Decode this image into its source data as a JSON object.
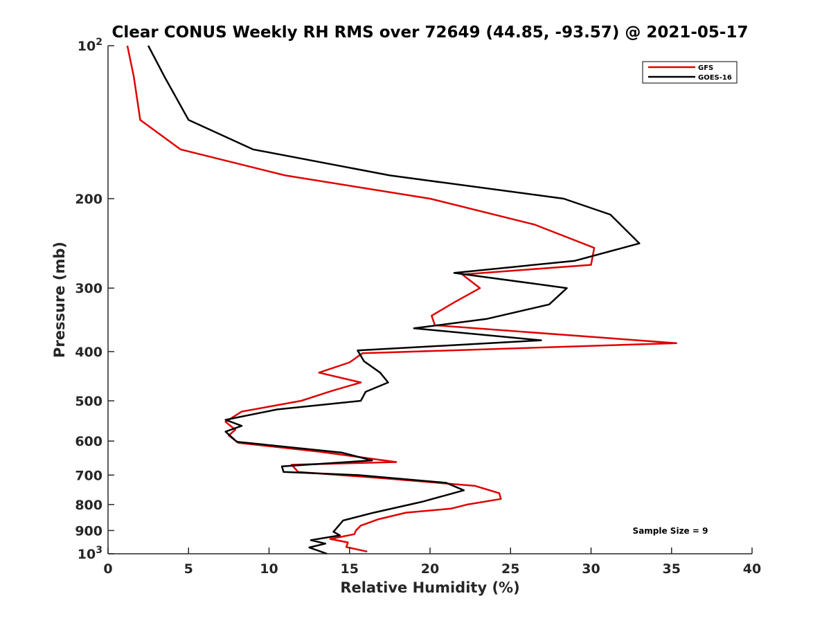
{
  "chart_data": {
    "type": "line",
    "title": "Clear CONUS Weekly RH RMS over 72649 (44.85, -93.57) @ 2021-05-17",
    "xlabel": "Relative Humidity (%)",
    "ylabel": "Pressure (mb)",
    "xlim": [
      0,
      40
    ],
    "ylim": [
      100,
      1000
    ],
    "y_scale": "log",
    "y_reversed": true,
    "grid": false,
    "legend_position": "top-right",
    "x_ticks": [
      0,
      5,
      10,
      15,
      20,
      25,
      30,
      35,
      40
    ],
    "x_tick_labels": [
      "0",
      "5",
      "10",
      "15",
      "20",
      "25",
      "30",
      "35",
      "40"
    ],
    "y_ticks": [
      100,
      200,
      300,
      400,
      500,
      600,
      700,
      800,
      900,
      1000
    ],
    "y_tick_labels": [
      {
        "base": "10",
        "exp": "2"
      },
      {
        "base": "200",
        "exp": ""
      },
      {
        "base": "300",
        "exp": ""
      },
      {
        "base": "400",
        "exp": ""
      },
      {
        "base": "500",
        "exp": ""
      },
      {
        "base": "600",
        "exp": ""
      },
      {
        "base": "700",
        "exp": ""
      },
      {
        "base": "800",
        "exp": ""
      },
      {
        "base": "900",
        "exp": ""
      },
      {
        "base": "10",
        "exp": "3"
      }
    ],
    "annotation": "Sample Size = 9",
    "series": [
      {
        "name": "GFS",
        "color": "#e00000",
        "x": [
          1.2,
          1.6,
          2.0,
          4.5,
          11.0,
          20.0,
          26.5,
          30.2,
          30.0,
          22.0,
          23.1,
          21.5,
          20.1,
          20.3,
          35.3,
          15.8,
          15.0,
          13.1,
          15.7,
          13.9,
          12.0,
          8.3,
          7.3,
          7.9,
          7.5,
          8.1,
          13.2,
          17.9,
          11.4,
          11.8,
          17.0,
          22.8,
          24.3,
          24.4,
          22.3,
          21.3,
          18.5,
          16.8,
          15.7,
          15.4,
          15.3,
          13.8,
          14.9,
          14.8,
          16.1
        ],
        "y": [
          100,
          115,
          140,
          160,
          180,
          200,
          225,
          250,
          270,
          282,
          300,
          320,
          340,
          355,
          385,
          403,
          420,
          440,
          460,
          478,
          500,
          525,
          550,
          570,
          585,
          605,
          630,
          660,
          668,
          690,
          710,
          735,
          760,
          780,
          800,
          815,
          830,
          855,
          880,
          900,
          915,
          935,
          950,
          970,
          990
        ]
      },
      {
        "name": "GOES-16",
        "color": "#000000",
        "x": [
          2.5,
          3.5,
          5.0,
          9.0,
          17.5,
          28.3,
          31.2,
          33.0,
          29.0,
          21.5,
          28.5,
          27.4,
          23.5,
          19.0,
          26.9,
          15.5,
          15.9,
          16.9,
          17.4,
          16.0,
          15.7,
          10.5,
          7.3,
          8.3,
          7.3,
          8.0,
          14.5,
          16.4,
          10.8,
          10.9,
          15.5,
          21.0,
          22.1,
          19.5,
          16.5,
          14.6,
          14.2,
          14.0,
          14.4,
          12.6,
          13.5,
          12.5,
          13.6
        ],
        "y": [
          100,
          115,
          140,
          160,
          180,
          200,
          215,
          245,
          265,
          280,
          300,
          323,
          345,
          360,
          380,
          398,
          418,
          440,
          460,
          480,
          500,
          520,
          545,
          560,
          575,
          602,
          632,
          655,
          673,
          690,
          700,
          725,
          750,
          790,
          830,
          860,
          890,
          905,
          920,
          940,
          955,
          972,
          1000
        ]
      }
    ]
  }
}
